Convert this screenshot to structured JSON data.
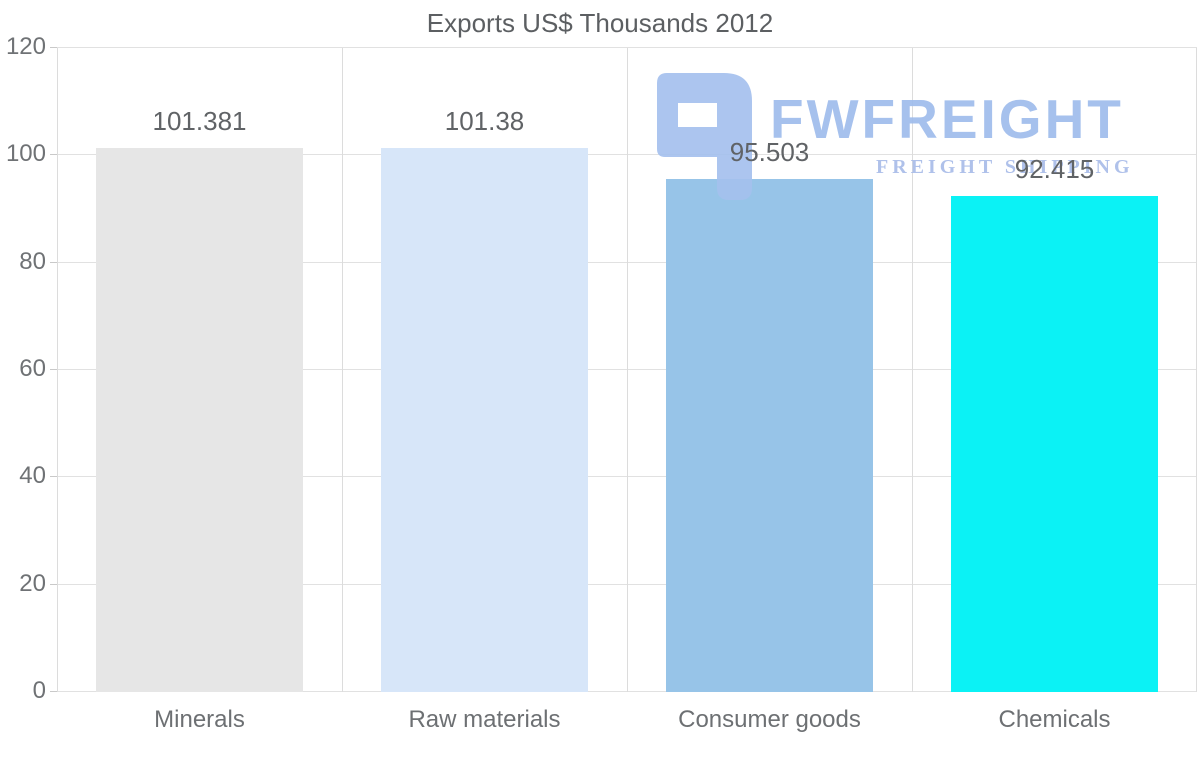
{
  "chart_data": {
    "type": "bar",
    "title": "Exports US$ Thousands 2012",
    "categories": [
      "Minerals",
      "Raw materials",
      "Consumer goods",
      "Chemicals"
    ],
    "values": [
      101.381,
      101.38,
      95.503,
      92.415
    ],
    "value_labels": [
      "101.381",
      "101.38",
      "95.503",
      "92.415"
    ],
    "bar_colors": [
      "#e6e6e6",
      "#d7e6f9",
      "#97c4e8",
      "#0bf2f5"
    ],
    "xlabel": "",
    "ylabel": "",
    "ylim": [
      0,
      120
    ],
    "yticks": [
      0,
      20,
      40,
      60,
      80,
      100,
      120
    ],
    "grid": true,
    "legend": false
  },
  "watermark": {
    "brand": "FWFREIGHT",
    "tagline": "FREIGHT SHIPPING",
    "color": "#a5c1ee"
  },
  "colors": {
    "background": "#ffffff",
    "grid": "#e1e1e1",
    "text": "#6f7275",
    "title_text": "#5c5f62"
  }
}
